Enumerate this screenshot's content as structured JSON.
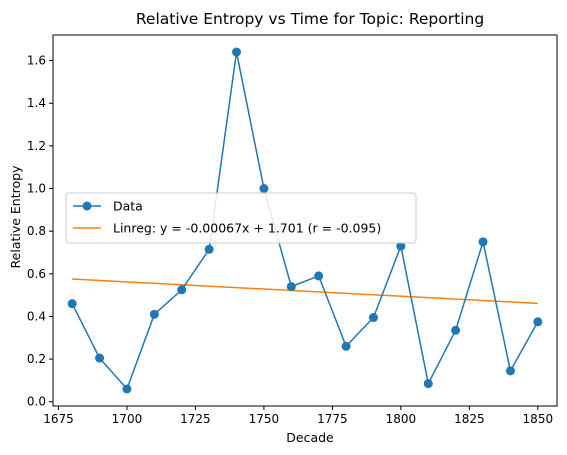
{
  "chart_data": {
    "type": "line",
    "title": "Relative Entropy vs Time for Topic: Reporting",
    "xlabel": "Decade",
    "ylabel": "Relative Entropy",
    "xlim": [
      1673,
      1857
    ],
    "ylim": [
      -0.02,
      1.72
    ],
    "xticks": [
      1675,
      1700,
      1725,
      1750,
      1775,
      1800,
      1825,
      1850
    ],
    "yticks": [
      0.0,
      0.2,
      0.4,
      0.6,
      0.8,
      1.0,
      1.2,
      1.4,
      1.6
    ],
    "grid": false,
    "legend_position": "center-left",
    "series": [
      {
        "name": "Data",
        "color": "#1f77b4",
        "marker": "circle",
        "x": [
          1680,
          1690,
          1700,
          1710,
          1720,
          1730,
          1740,
          1750,
          1760,
          1770,
          1780,
          1790,
          1800,
          1810,
          1820,
          1830,
          1840,
          1850
        ],
        "y": [
          0.46,
          0.205,
          0.06,
          0.41,
          0.525,
          0.715,
          1.64,
          1.0,
          0.54,
          0.59,
          0.26,
          0.395,
          0.73,
          0.085,
          0.335,
          0.75,
          0.145,
          0.375
        ]
      },
      {
        "name": "Linreg: y = -0.00067x + 1.701 (r = -0.095)",
        "color": "#ff7f0e",
        "marker": "none",
        "x": [
          1680,
          1850
        ],
        "y": [
          0.5754,
          0.4615
        ]
      }
    ]
  }
}
